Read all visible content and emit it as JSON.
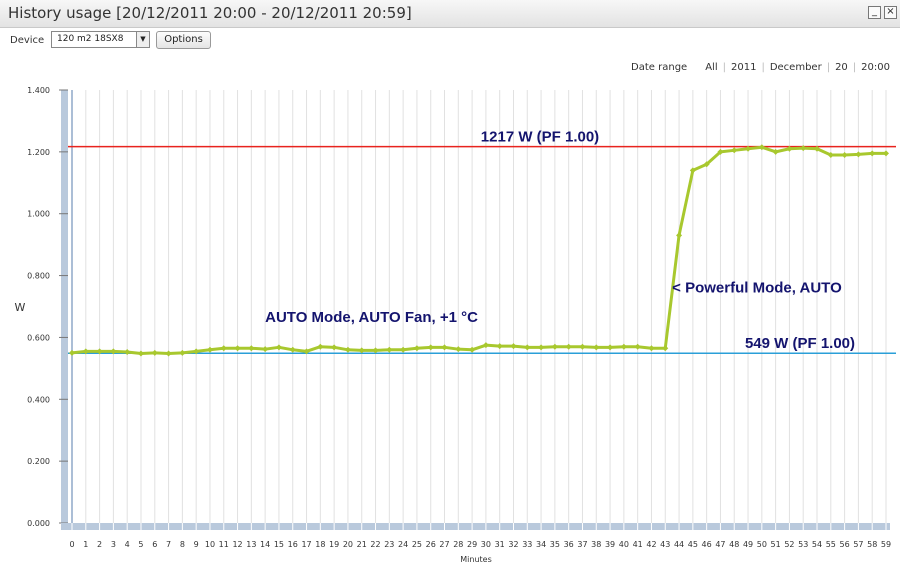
{
  "window": {
    "title": "History usage [20/12/2011 20:00 - 20/12/2011 20:59]",
    "minimize_symbol": "_",
    "close_symbol": "×"
  },
  "toolbar": {
    "device_label": "Device",
    "device_value": "120 m2 18SX8",
    "dropdown_arrow": "▼",
    "options_label": "Options"
  },
  "date_range": {
    "label": "Date range",
    "items": [
      "All",
      "2011",
      "December",
      "20",
      "20:00"
    ]
  },
  "chart_data": {
    "type": "line",
    "xlabel": "Minutes",
    "ylabel": "W",
    "x": [
      0,
      1,
      2,
      3,
      4,
      5,
      6,
      7,
      8,
      9,
      10,
      11,
      12,
      13,
      14,
      15,
      16,
      17,
      18,
      19,
      20,
      21,
      22,
      23,
      24,
      25,
      26,
      27,
      28,
      29,
      30,
      31,
      32,
      33,
      34,
      35,
      36,
      37,
      38,
      39,
      40,
      41,
      42,
      43,
      44,
      45,
      46,
      47,
      48,
      49,
      50,
      51,
      52,
      53,
      54,
      55,
      56,
      57,
      58,
      59
    ],
    "ylim": [
      0,
      1400
    ],
    "yticks": [
      0,
      200,
      400,
      600,
      800,
      1000,
      1200,
      1400
    ],
    "ytick_labels": [
      "0.000",
      "0.200",
      "0.400",
      "0.600",
      "0.800",
      "1.000",
      "1.200",
      "1.400"
    ],
    "grid": true,
    "series": [
      {
        "color": "#a8c82e",
        "values": [
          550,
          555,
          555,
          555,
          553,
          548,
          550,
          548,
          550,
          555,
          560,
          565,
          565,
          565,
          562,
          568,
          560,
          555,
          570,
          568,
          560,
          558,
          558,
          560,
          560,
          565,
          568,
          568,
          562,
          560,
          575,
          572,
          572,
          568,
          568,
          570,
          570,
          570,
          568,
          568,
          570,
          570,
          565,
          565,
          930,
          1140,
          1160,
          1200,
          1205,
          1210,
          1215,
          1200,
          1210,
          1212,
          1210,
          1190,
          1190,
          1192,
          1195,
          1195
        ]
      }
    ],
    "reference_lines": [
      {
        "value": 1217,
        "color": "#e8231e",
        "label": "1217 W (PF 1.00)"
      },
      {
        "value": 549,
        "color": "#2a9fd8",
        "label": "549 W (PF 1.00)"
      }
    ],
    "annotations": [
      {
        "text": "AUTO Mode, AUTO Fan, +1 °C",
        "x": 14,
        "y": 650
      },
      {
        "text": "< Powerful Mode, AUTO",
        "x": 43.5,
        "y": 745
      }
    ]
  }
}
